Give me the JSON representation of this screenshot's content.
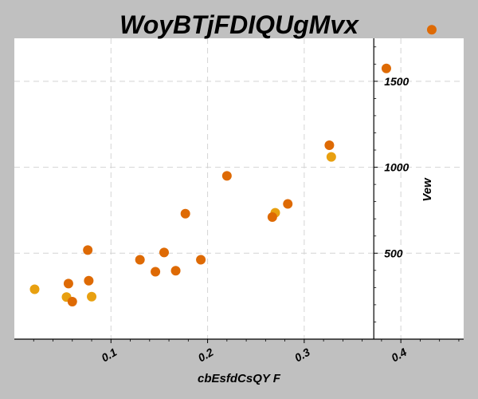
{
  "chart_data": {
    "type": "scatter",
    "title": "WoyBTjFDIQUgMvx",
    "xlabel": "cbEsfdCsQY F",
    "ylabel": "Vew",
    "xlim": [
      0.0,
      0.465
    ],
    "ylim": [
      0,
      1750
    ],
    "x_ticks": [
      0.1,
      0.2,
      0.3,
      0.4
    ],
    "x_tick_labels": [
      "0.1",
      "0.2",
      "0.3",
      "0.4"
    ],
    "y_ticks": [
      500,
      1000,
      1500
    ],
    "y_tick_labels": [
      "500",
      "1000",
      "1500"
    ],
    "y_axis_at_x": 0.372,
    "grid": true,
    "colors": {
      "plot_bg": "#ffffff",
      "page_bg": "#c0c0c0",
      "grid": "#d4d4d4"
    },
    "series": [
      {
        "color": "#e8a010",
        "points": [
          {
            "x": 0.021,
            "y": 290
          },
          {
            "x": 0.054,
            "y": 245
          },
          {
            "x": 0.08,
            "y": 247
          },
          {
            "x": 0.27,
            "y": 735
          },
          {
            "x": 0.328,
            "y": 1060
          }
        ]
      },
      {
        "color": "#de6a04",
        "points": [
          {
            "x": 0.056,
            "y": 323
          },
          {
            "x": 0.06,
            "y": 218
          },
          {
            "x": 0.076,
            "y": 518
          },
          {
            "x": 0.077,
            "y": 340
          },
          {
            "x": 0.13,
            "y": 462
          },
          {
            "x": 0.146,
            "y": 392
          },
          {
            "x": 0.155,
            "y": 504
          },
          {
            "x": 0.167,
            "y": 398
          },
          {
            "x": 0.177,
            "y": 730
          },
          {
            "x": 0.193,
            "y": 462
          },
          {
            "x": 0.22,
            "y": 950
          },
          {
            "x": 0.267,
            "y": 710
          },
          {
            "x": 0.283,
            "y": 787
          },
          {
            "x": 0.326,
            "y": 1128
          },
          {
            "x": 0.385,
            "y": 1575
          },
          {
            "x": 0.432,
            "y": 1800
          }
        ]
      }
    ]
  }
}
